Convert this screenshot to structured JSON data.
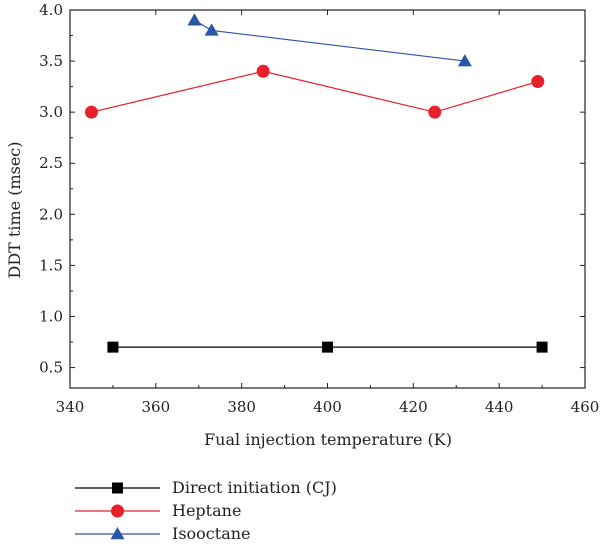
{
  "chart_data": {
    "type": "line",
    "xlabel": "Fual injection temperature (K)",
    "ylabel": "DDT time (msec)",
    "xlim": [
      340,
      460
    ],
    "ylim": [
      0.3,
      4.0
    ],
    "xticks": [
      340,
      360,
      380,
      400,
      420,
      440,
      460
    ],
    "xtick_labels": [
      "340",
      "360",
      "380",
      "400",
      "420",
      "440",
      "460"
    ],
    "yticks": [
      0.5,
      1.0,
      1.5,
      2.0,
      2.5,
      3.0,
      3.5,
      4.0
    ],
    "ytick_labels": [
      "0.5",
      "1.0",
      "1.5",
      "2.0",
      "2.5",
      "3.0",
      "3.5",
      "4.0"
    ],
    "grid": false,
    "legend_position": "below plot",
    "series": [
      {
        "name": "Direct initiation (CJ)",
        "color": "#000000",
        "marker": "square",
        "x": [
          350,
          400,
          450
        ],
        "y": [
          0.7,
          0.7,
          0.7
        ]
      },
      {
        "name": "Heptane",
        "color": "#e8202a",
        "marker": "circle",
        "x": [
          345,
          385,
          425,
          449
        ],
        "y": [
          3.0,
          3.4,
          3.0,
          3.3
        ]
      },
      {
        "name": "Isooctane",
        "color": "#2b55a8",
        "marker": "triangle",
        "x": [
          369,
          373,
          432
        ],
        "y": [
          3.9,
          3.8,
          3.5
        ]
      }
    ]
  }
}
